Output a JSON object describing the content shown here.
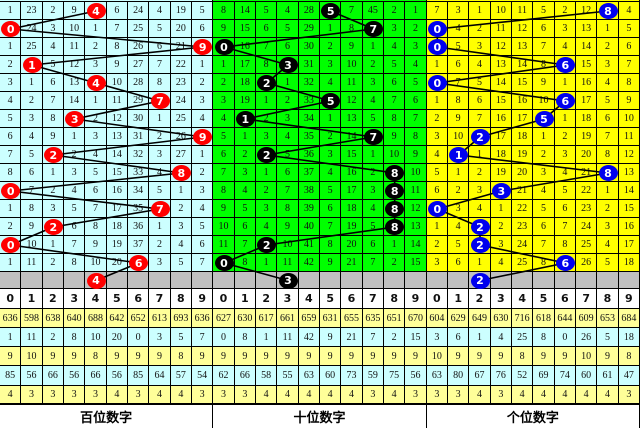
{
  "colors": {
    "hundreds_bg": "#ccffff",
    "hundreds_ball": "#ff0000",
    "tens_bg": "#00ff00",
    "tens_ball": "#000000",
    "units_bg": "#ffff00",
    "units_ball": "#0000ee",
    "gray_row": "#c0c0c0",
    "stat_yellow": "#ffff99",
    "stat_cyan": "#ccffff"
  },
  "panels": [
    {
      "label": "百位数字",
      "rows": [
        {
          "cells": [
            "1",
            "23",
            "2",
            "9",
            "4",
            "6",
            "24",
            "4",
            "19",
            "5"
          ],
          "hit": 4
        },
        {
          "cells": [
            "0",
            "24",
            "3",
            "10",
            "1",
            "7",
            "25",
            "5",
            "20",
            "6"
          ],
          "hit": 0
        },
        {
          "cells": [
            "1",
            "25",
            "4",
            "11",
            "2",
            "8",
            "26",
            "6",
            "21",
            "9"
          ],
          "hit": 9
        },
        {
          "cells": [
            "2",
            "1",
            "5",
            "12",
            "3",
            "9",
            "27",
            "7",
            "22",
            "1"
          ],
          "hit": 1
        },
        {
          "cells": [
            "3",
            "1",
            "6",
            "13",
            "4",
            "10",
            "28",
            "8",
            "23",
            "2"
          ],
          "hit": 4
        },
        {
          "cells": [
            "4",
            "2",
            "7",
            "14",
            "1",
            "11",
            "29",
            "7",
            "24",
            "3"
          ],
          "hit": 7
        },
        {
          "cells": [
            "5",
            "3",
            "8",
            "3",
            "2",
            "12",
            "30",
            "1",
            "25",
            "4"
          ],
          "hit": 3
        },
        {
          "cells": [
            "6",
            "4",
            "9",
            "1",
            "3",
            "13",
            "31",
            "2",
            "26",
            "9"
          ],
          "hit": 9
        },
        {
          "cells": [
            "7",
            "5",
            "2",
            "2",
            "4",
            "14",
            "32",
            "3",
            "27",
            "1"
          ],
          "hit": 2
        },
        {
          "cells": [
            "8",
            "6",
            "1",
            "3",
            "5",
            "15",
            "33",
            "4",
            "8",
            "2"
          ],
          "hit": 8
        },
        {
          "cells": [
            "0",
            "7",
            "2",
            "4",
            "6",
            "16",
            "34",
            "5",
            "1",
            "3"
          ],
          "hit": 0
        },
        {
          "cells": [
            "1",
            "8",
            "3",
            "5",
            "7",
            "17",
            "35",
            "7",
            "2",
            "4"
          ],
          "hit": 7
        },
        {
          "cells": [
            "2",
            "9",
            "2",
            "6",
            "8",
            "18",
            "36",
            "1",
            "3",
            "5"
          ],
          "hit": 2
        },
        {
          "cells": [
            "0",
            "10",
            "1",
            "7",
            "9",
            "19",
            "37",
            "2",
            "4",
            "6"
          ],
          "hit": 0
        },
        {
          "cells": [
            "1",
            "11",
            "2",
            "8",
            "10",
            "20",
            "6",
            "3",
            "5",
            "7"
          ],
          "hit": 6
        }
      ],
      "next": {
        "value": "4",
        "hit": 4
      },
      "digits": [
        "0",
        "1",
        "2",
        "3",
        "4",
        "5",
        "6",
        "7",
        "8",
        "9"
      ],
      "stats": [
        [
          "636",
          "598",
          "638",
          "640",
          "688",
          "642",
          "652",
          "613",
          "693",
          "636"
        ],
        [
          "1",
          "11",
          "2",
          "8",
          "10",
          "20",
          "0",
          "3",
          "5",
          "7"
        ],
        [
          "9",
          "10",
          "9",
          "9",
          "8",
          "9",
          "9",
          "9",
          "8",
          "9"
        ],
        [
          "85",
          "56",
          "66",
          "56",
          "66",
          "56",
          "85",
          "64",
          "57",
          "54"
        ],
        [
          "4",
          "3",
          "3",
          "3",
          "3",
          "4",
          "3",
          "4",
          "4",
          "3"
        ]
      ]
    },
    {
      "label": "十位数字",
      "rows": [
        {
          "cells": [
            "8",
            "14",
            "5",
            "4",
            "28",
            "5",
            "7",
            "45",
            "2",
            "1"
          ],
          "hit": 5
        },
        {
          "cells": [
            "9",
            "15",
            "6",
            "5",
            "29",
            "1",
            "8",
            "7",
            "3",
            "2"
          ],
          "hit": 7
        },
        {
          "cells": [
            "0",
            "16",
            "7",
            "6",
            "30",
            "2",
            "9",
            "1",
            "4",
            "3"
          ],
          "hit": 0
        },
        {
          "cells": [
            "1",
            "17",
            "8",
            "3",
            "31",
            "3",
            "10",
            "2",
            "5",
            "4"
          ],
          "hit": 3
        },
        {
          "cells": [
            "2",
            "18",
            "2",
            "1",
            "32",
            "4",
            "11",
            "3",
            "6",
            "5"
          ],
          "hit": 2
        },
        {
          "cells": [
            "3",
            "19",
            "1",
            "2",
            "33",
            "5",
            "12",
            "4",
            "7",
            "6"
          ],
          "hit": 5
        },
        {
          "cells": [
            "4",
            "1",
            "2",
            "3",
            "34",
            "1",
            "13",
            "5",
            "8",
            "7"
          ],
          "hit": 1
        },
        {
          "cells": [
            "5",
            "1",
            "3",
            "4",
            "35",
            "2",
            "14",
            "7",
            "9",
            "8"
          ],
          "hit": 7
        },
        {
          "cells": [
            "6",
            "2",
            "2",
            "5",
            "36",
            "3",
            "15",
            "1",
            "10",
            "9"
          ],
          "hit": 2
        },
        {
          "cells": [
            "7",
            "3",
            "1",
            "6",
            "37",
            "4",
            "16",
            "2",
            "8",
            "10"
          ],
          "hit": 8
        },
        {
          "cells": [
            "8",
            "4",
            "2",
            "7",
            "38",
            "5",
            "17",
            "3",
            "8",
            "11"
          ],
          "hit": 8
        },
        {
          "cells": [
            "9",
            "5",
            "3",
            "8",
            "39",
            "6",
            "18",
            "4",
            "8",
            "12"
          ],
          "hit": 8
        },
        {
          "cells": [
            "10",
            "6",
            "4",
            "9",
            "40",
            "7",
            "19",
            "5",
            "8",
            "13"
          ],
          "hit": 8
        },
        {
          "cells": [
            "11",
            "7",
            "2",
            "10",
            "41",
            "8",
            "20",
            "6",
            "1",
            "14"
          ],
          "hit": 2
        },
        {
          "cells": [
            "0",
            "8",
            "1",
            "11",
            "42",
            "9",
            "21",
            "7",
            "2",
            "15"
          ],
          "hit": 0
        }
      ],
      "next": {
        "value": "3",
        "hit": 3
      },
      "digits": [
        "0",
        "1",
        "2",
        "3",
        "4",
        "5",
        "6",
        "7",
        "8",
        "9"
      ],
      "stats": [
        [
          "627",
          "630",
          "617",
          "661",
          "659",
          "631",
          "655",
          "635",
          "651",
          "670"
        ],
        [
          "0",
          "8",
          "1",
          "11",
          "42",
          "9",
          "21",
          "7",
          "2",
          "15"
        ],
        [
          "9",
          "9",
          "9",
          "9",
          "9",
          "9",
          "9",
          "9",
          "9",
          "9"
        ],
        [
          "62",
          "66",
          "58",
          "55",
          "63",
          "60",
          "73",
          "59",
          "75",
          "56"
        ],
        [
          "3",
          "3",
          "4",
          "4",
          "4",
          "4",
          "4",
          "3",
          "4",
          "3"
        ]
      ]
    },
    {
      "label": "个位数字",
      "rows": [
        {
          "cells": [
            "7",
            "3",
            "1",
            "10",
            "11",
            "5",
            "2",
            "12",
            "8",
            "4"
          ],
          "hit": 8
        },
        {
          "cells": [
            "0",
            "4",
            "2",
            "11",
            "12",
            "6",
            "3",
            "13",
            "1",
            "5"
          ],
          "hit": 0
        },
        {
          "cells": [
            "0",
            "5",
            "3",
            "12",
            "13",
            "7",
            "4",
            "14",
            "2",
            "6"
          ],
          "hit": 0
        },
        {
          "cells": [
            "1",
            "6",
            "4",
            "13",
            "14",
            "8",
            "6",
            "15",
            "3",
            "7"
          ],
          "hit": 6
        },
        {
          "cells": [
            "0",
            "7",
            "5",
            "14",
            "15",
            "9",
            "1",
            "16",
            "4",
            "8"
          ],
          "hit": 0
        },
        {
          "cells": [
            "1",
            "8",
            "6",
            "15",
            "16",
            "10",
            "6",
            "17",
            "5",
            "9"
          ],
          "hit": 6
        },
        {
          "cells": [
            "2",
            "9",
            "7",
            "16",
            "17",
            "5",
            "1",
            "18",
            "6",
            "10"
          ],
          "hit": 5
        },
        {
          "cells": [
            "3",
            "10",
            "2",
            "17",
            "18",
            "1",
            "2",
            "19",
            "7",
            "11"
          ],
          "hit": 2
        },
        {
          "cells": [
            "4",
            "1",
            "1",
            "18",
            "19",
            "2",
            "3",
            "20",
            "8",
            "12"
          ],
          "hit": 1
        },
        {
          "cells": [
            "5",
            "1",
            "2",
            "19",
            "20",
            "3",
            "4",
            "21",
            "8",
            "13"
          ],
          "hit": 8
        },
        {
          "cells": [
            "6",
            "2",
            "3",
            "3",
            "21",
            "4",
            "5",
            "22",
            "1",
            "14"
          ],
          "hit": 3
        },
        {
          "cells": [
            "0",
            "3",
            "4",
            "1",
            "22",
            "5",
            "6",
            "23",
            "2",
            "15"
          ],
          "hit": 0
        },
        {
          "cells": [
            "1",
            "4",
            "2",
            "2",
            "23",
            "6",
            "7",
            "24",
            "3",
            "16"
          ],
          "hit": 2
        },
        {
          "cells": [
            "2",
            "5",
            "2",
            "3",
            "24",
            "7",
            "8",
            "25",
            "4",
            "17"
          ],
          "hit": 2
        },
        {
          "cells": [
            "3",
            "6",
            "1",
            "4",
            "25",
            "8",
            "6",
            "26",
            "5",
            "18"
          ],
          "hit": 6
        }
      ],
      "next": {
        "value": "2",
        "hit": 2
      },
      "digits": [
        "0",
        "1",
        "2",
        "3",
        "4",
        "5",
        "6",
        "7",
        "8",
        "9"
      ],
      "stats": [
        [
          "604",
          "629",
          "649",
          "630",
          "716",
          "618",
          "644",
          "609",
          "653",
          "684"
        ],
        [
          "3",
          "6",
          "1",
          "4",
          "25",
          "8",
          "0",
          "26",
          "5",
          "18"
        ],
        [
          "10",
          "9",
          "9",
          "9",
          "8",
          "9",
          "9",
          "10",
          "9",
          "8"
        ],
        [
          "63",
          "80",
          "67",
          "76",
          "52",
          "69",
          "74",
          "60",
          "61",
          "47"
        ],
        [
          "3",
          "3",
          "4",
          "3",
          "4",
          "4",
          "4",
          "4",
          "4",
          "3"
        ]
      ]
    }
  ]
}
